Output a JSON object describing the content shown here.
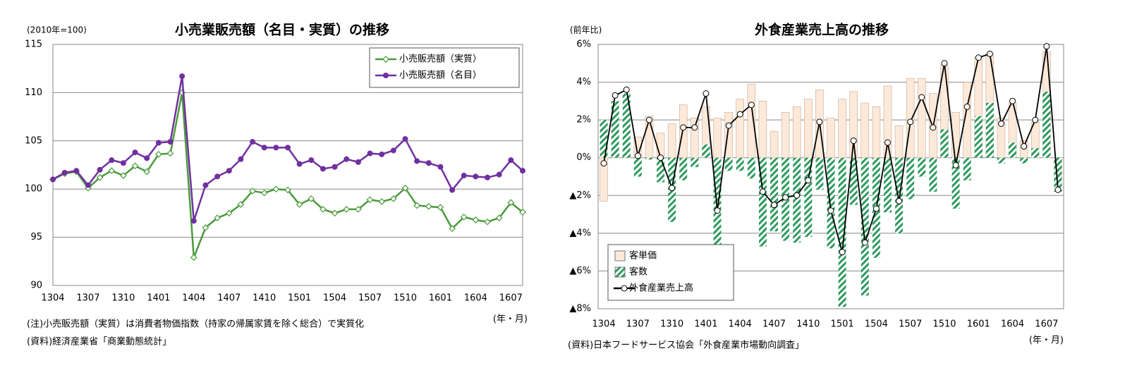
{
  "chart_data": [
    {
      "type": "line",
      "title": "小売業販売額（名目・実質）の推移",
      "y_label": "(2010年=100)",
      "x_label": "(年・月)",
      "notes": [
        "(注)小売販売額（実質）は消費者物価指数（持家の帰属家賃を除く総合）で実質化",
        "(資料)経済産業省「商業動態統計」"
      ],
      "categories": [
        "1304",
        null,
        null,
        "1307",
        null,
        null,
        "1310",
        null,
        null,
        "1401",
        null,
        null,
        "1404",
        null,
        null,
        "1407",
        null,
        null,
        "1410",
        null,
        null,
        "1501",
        null,
        null,
        "1504",
        null,
        null,
        "1507",
        null,
        null,
        "1510",
        null,
        null,
        "1601",
        null,
        null,
        "1604",
        null,
        null,
        "1607",
        null
      ],
      "series": [
        {
          "name": "小売販売額（実質）",
          "color": "#4a9a3a",
          "marker": "open-diamond",
          "values": [
            101.0,
            101.6,
            101.8,
            100.1,
            101.2,
            101.9,
            101.4,
            102.4,
            101.8,
            103.6,
            103.7,
            110.0,
            92.9,
            96.0,
            97.0,
            97.5,
            98.4,
            99.8,
            99.6,
            100.0,
            99.9,
            98.4,
            99.0,
            97.9,
            97.5,
            97.9,
            97.9,
            98.9,
            98.7,
            99.0,
            100.1,
            98.3,
            98.2,
            98.1,
            95.9,
            97.1,
            96.8,
            96.6,
            97.0,
            98.6,
            97.6
          ]
        },
        {
          "name": "小売販売額（名目）",
          "color": "#7030a0",
          "marker": "circle",
          "values": [
            101.0,
            101.7,
            101.9,
            100.4,
            102.0,
            103.0,
            102.7,
            103.8,
            103.2,
            104.8,
            104.9,
            111.7,
            96.7,
            100.4,
            101.3,
            101.9,
            103.1,
            104.9,
            104.3,
            104.3,
            104.3,
            102.6,
            103.0,
            102.1,
            102.3,
            103.1,
            102.8,
            103.7,
            103.6,
            104.0,
            105.2,
            102.9,
            102.7,
            102.3,
            99.9,
            101.4,
            101.3,
            101.2,
            101.5,
            103.0,
            101.9
          ]
        }
      ],
      "ylim": [
        90,
        115
      ],
      "yticks": [
        90,
        95,
        100,
        105,
        110,
        115
      ],
      "grid": true,
      "legend": "top-right"
    },
    {
      "type": "bar",
      "title": "外食産業売上高の推移",
      "y_label": "(前年比)",
      "x_label": "(年・月)",
      "notes": [
        "(資料)日本フードサービス協会「外食産業市場動向調査」"
      ],
      "categories": [
        "1304",
        null,
        null,
        "1307",
        null,
        null,
        "1310",
        null,
        null,
        "1401",
        null,
        null,
        "1404",
        null,
        null,
        "1407",
        null,
        null,
        "1410",
        null,
        null,
        "1501",
        null,
        null,
        "1504",
        null,
        null,
        "1507",
        null,
        null,
        "1510",
        null,
        null,
        "1601",
        null,
        null,
        "1604",
        null,
        null,
        "1607",
        null
      ],
      "series": [
        {
          "name": "客単価",
          "color": "#fde9d9",
          "values": [
            -2.3,
            0.3,
            0.2,
            1.1,
            2.2,
            1.3,
            1.8,
            2.8,
            2.1,
            2.7,
            2.1,
            2.4,
            3.1,
            3.9,
            3.0,
            1.4,
            2.4,
            2.7,
            3.1,
            3.6,
            2.1,
            3.1,
            3.5,
            2.9,
            2.7,
            3.8,
            1.7,
            4.2,
            4.2,
            3.4,
            4.9,
            2.4,
            4.0,
            5.3,
            5.5,
            2.1,
            2.9,
            0.9,
            1.9,
            5.6,
            -1.4
          ]
        },
        {
          "name": "客数",
          "color": "#2e9a5e",
          "pattern": "hatch",
          "values": [
            2.0,
            3.0,
            3.4,
            -1.0,
            -0.1,
            -1.3,
            -3.4,
            -1.2,
            -0.5,
            0.7,
            -4.8,
            -0.7,
            -0.7,
            -1.1,
            -4.7,
            -3.9,
            -4.4,
            -4.5,
            -4.2,
            -1.7,
            -4.8,
            -7.9,
            -2.5,
            -7.3,
            -5.3,
            -2.9,
            -4.0,
            -2.2,
            -1.0,
            -1.8,
            1.5,
            -2.7,
            -1.2,
            2.2,
            2.9,
            -0.3,
            0.8,
            -0.3,
            0.5,
            3.5,
            -1.8
          ]
        },
        {
          "name": "外食産業売上高",
          "type": "line",
          "color": "#000000",
          "marker": "open-circle",
          "values": [
            -0.3,
            3.3,
            3.6,
            0.1,
            2.0,
            0.0,
            -1.6,
            1.6,
            1.6,
            3.4,
            -2.8,
            1.7,
            2.3,
            2.8,
            -1.8,
            -2.5,
            -2.1,
            -2.0,
            -1.2,
            1.9,
            -2.8,
            -5.0,
            0.9,
            -4.5,
            -2.7,
            0.8,
            -2.3,
            1.9,
            3.2,
            1.6,
            5.0,
            -0.4,
            2.7,
            5.3,
            5.5,
            1.8,
            3.0,
            0.6,
            2.0,
            5.9,
            -1.7
          ]
        }
      ],
      "ylim": [
        -8,
        6
      ],
      "yticks": [
        {
          "value": -8,
          "label": "▲8%"
        },
        {
          "value": -6,
          "label": "▲6%"
        },
        {
          "value": -4,
          "label": "▲4%"
        },
        {
          "value": -2,
          "label": "▲2%"
        },
        {
          "value": 0,
          "label": "0%"
        },
        {
          "value": 2,
          "label": "2%"
        },
        {
          "value": 4,
          "label": "4%"
        },
        {
          "value": 6,
          "label": "6%"
        }
      ],
      "grid": true,
      "legend": "bottom-left"
    }
  ]
}
